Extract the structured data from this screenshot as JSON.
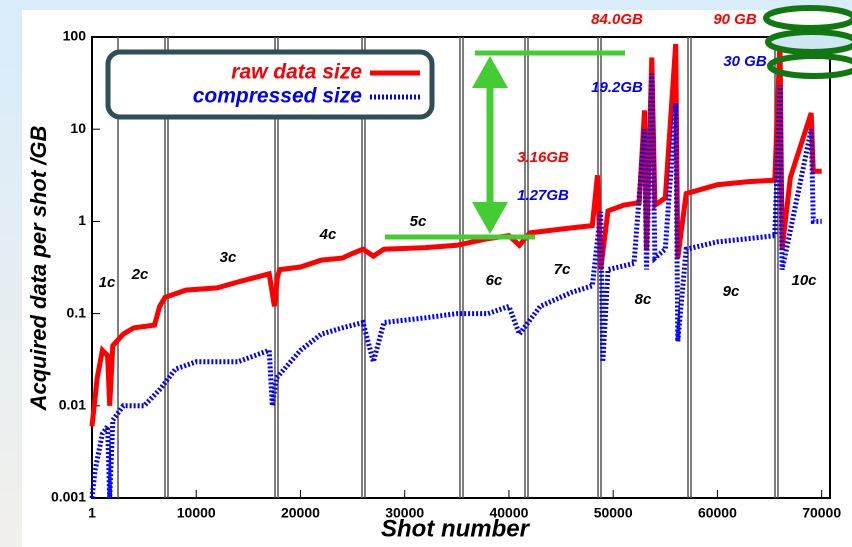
{
  "chart_data": {
    "type": "line",
    "x_label": "Shot number",
    "y_label": "Acquired data per shot /GB",
    "xlim": [
      1,
      70800
    ],
    "xticks": [
      1,
      10000,
      20000,
      30000,
      40000,
      50000,
      60000,
      70000
    ],
    "ylim": [
      0.001,
      100
    ],
    "yticks": [
      0.001,
      0.01,
      0.1,
      1,
      10,
      100
    ],
    "y_log": true,
    "legend": "upper left",
    "series": [
      {
        "name": "raw data size",
        "color": "#ff0000",
        "x": [
          1,
          500,
          1000,
          1500,
          1700,
          2000,
          3000,
          4000,
          6000,
          6500,
          7000,
          9000,
          12000,
          14000,
          17000,
          17500,
          17800,
          18000,
          20000,
          22000,
          24000,
          25000,
          26000,
          27000,
          28000,
          32000,
          35000,
          38000,
          40000,
          41000,
          42000,
          46000,
          48000,
          48500,
          48800,
          49500,
          51000,
          52500,
          53000,
          53200,
          53700,
          54000,
          55000,
          56000,
          56200,
          57000,
          60000,
          63000,
          65500,
          66000,
          66200,
          67000,
          69000,
          69200,
          70000
        ],
        "y": [
          0.006,
          0.02,
          0.04,
          0.035,
          0.01,
          0.045,
          0.06,
          0.07,
          0.075,
          0.12,
          0.15,
          0.18,
          0.19,
          0.22,
          0.27,
          0.12,
          0.25,
          0.3,
          0.32,
          0.38,
          0.4,
          0.45,
          0.5,
          0.42,
          0.5,
          0.52,
          0.55,
          0.65,
          0.7,
          0.55,
          0.75,
          0.85,
          0.9,
          3.16,
          0.3,
          1.3,
          1.5,
          1.6,
          16,
          0.5,
          60,
          1.5,
          1.8,
          84,
          0.4,
          2,
          2.5,
          2.7,
          2.8,
          90,
          0.5,
          3,
          15,
          3.5,
          3.5
        ]
      },
      {
        "name": "compressed size",
        "color": "#0000ff",
        "x": [
          1,
          300,
          1000,
          1500,
          1700,
          2000,
          3000,
          5000,
          6500,
          8000,
          10000,
          14000,
          17000,
          17300,
          17700,
          20000,
          22000,
          24000,
          26000,
          27000,
          28000,
          32000,
          35000,
          38000,
          40000,
          41000,
          43000,
          46000,
          48000,
          48800,
          49000,
          49500,
          52000,
          53000,
          53200,
          53700,
          54000,
          55000,
          56000,
          56200,
          57000,
          60000,
          63000,
          65500,
          66000,
          66200,
          67000,
          69000,
          69200,
          70000
        ],
        "y": [
          0.001,
          0.002,
          0.005,
          0.006,
          0.001,
          0.007,
          0.01,
          0.01,
          0.015,
          0.025,
          0.03,
          0.03,
          0.04,
          0.01,
          0.02,
          0.04,
          0.06,
          0.07,
          0.08,
          0.03,
          0.08,
          0.09,
          0.1,
          0.1,
          0.12,
          0.06,
          0.12,
          0.17,
          0.2,
          1.27,
          0.03,
          0.3,
          0.35,
          10,
          0.3,
          40,
          0.4,
          0.5,
          19.2,
          0.05,
          0.5,
          0.6,
          0.65,
          0.7,
          30,
          0.3,
          0.8,
          10,
          1,
          1
        ]
      }
    ],
    "annotations": [
      {
        "text": "1c"
      },
      {
        "text": "2c"
      },
      {
        "text": "3c"
      },
      {
        "text": "4c"
      },
      {
        "text": "5c"
      },
      {
        "text": "6c"
      },
      {
        "text": "7c"
      },
      {
        "text": "8c"
      },
      {
        "text": "9c"
      },
      {
        "text": "10c"
      },
      {
        "text": "84.0GB",
        "color": "#ff0000"
      },
      {
        "text": "19.2GB",
        "color": "#0000ff"
      },
      {
        "text": "3.16GB",
        "color": "#ff0000"
      },
      {
        "text": "1.27GB",
        "color": "#0000ff"
      },
      {
        "text": "90 GB",
        "color": "#ff0000"
      },
      {
        "text": "30 GB",
        "color": "#0000ff"
      }
    ]
  }
}
